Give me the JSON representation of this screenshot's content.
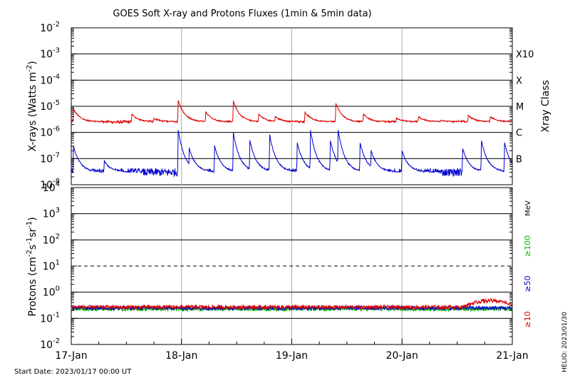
{
  "chart_data": {
    "title": "GOES Soft X-ray and Protons Fluxes   (1min & 5min data)",
    "footer": "Start Date: 2023/01/17 00:00 UT",
    "credit": "HELIO: 2023/01/30",
    "x": {
      "type": "date",
      "range": [
        "2023-01-17",
        "2023-01-21"
      ],
      "tick_labels": [
        "17-Jan",
        "18-Jan",
        "19-Jan",
        "20-Jan",
        "21-Jan"
      ],
      "ticks_days": [
        0,
        1,
        2,
        3,
        4
      ]
    },
    "panels": [
      {
        "type": "line",
        "name": "xray",
        "ylabel": "X-rays (Watts m",
        "ylabel_sup": "-2",
        "ylabel_end": ")",
        "yscale": "log",
        "ylim": [
          1e-08,
          0.01
        ],
        "y_tick_labels": [
          {
            "base": "10",
            "exp": "-2",
            "value": 0.01
          },
          {
            "base": "10",
            "exp": "-3",
            "value": 0.001
          },
          {
            "base": "10",
            "exp": "-4",
            "value": 0.0001
          },
          {
            "base": "10",
            "exp": "-5",
            "value": 1e-05
          },
          {
            "base": "10",
            "exp": "-6",
            "value": 1e-06
          },
          {
            "base": "10",
            "exp": "-7",
            "value": 1e-07
          },
          {
            "base": "10",
            "exp": "-8",
            "value": 1e-08
          }
        ],
        "gridlines_solid": [
          0.001,
          0.0001,
          1e-05,
          1e-06,
          1e-07
        ],
        "right_title": "Xray Class",
        "classes": [
          {
            "label": "X10",
            "value": 0.001
          },
          {
            "label": "X",
            "value": 0.0001
          },
          {
            "label": "M",
            "value": 1e-05
          },
          {
            "label": "C",
            "value": 1e-06
          },
          {
            "label": "B",
            "value": 1e-07
          }
        ],
        "series": [
          {
            "color": "#dd0000",
            "base": 2.5e-06,
            "peaks": [
              [
                0.02,
                8e-06
              ],
              [
                0.55,
                5e-06
              ],
              [
                0.75,
                3.5e-06
              ],
              [
                0.97,
                1.7e-05
              ],
              [
                1.22,
                6e-06
              ],
              [
                1.47,
                1.6e-05
              ],
              [
                1.7,
                5e-06
              ],
              [
                1.85,
                4e-06
              ],
              [
                2.12,
                6e-06
              ],
              [
                2.4,
                1.3e-05
              ],
              [
                2.65,
                5e-06
              ],
              [
                2.95,
                3.5e-06
              ],
              [
                3.15,
                4e-06
              ],
              [
                3.35,
                3e-06
              ],
              [
                3.6,
                4.5e-06
              ],
              [
                3.8,
                4e-06
              ]
            ]
          },
          {
            "color": "#0000cc",
            "base": 3e-08,
            "peaks": [
              [
                0.02,
                3e-07
              ],
              [
                0.3,
                8e-08
              ],
              [
                0.97,
                1.3e-06
              ],
              [
                1.07,
                2.5e-07
              ],
              [
                1.3,
                3e-07
              ],
              [
                1.47,
                1e-06
              ],
              [
                1.62,
                5e-07
              ],
              [
                1.8,
                8e-07
              ],
              [
                2.05,
                4e-07
              ],
              [
                2.17,
                1.2e-06
              ],
              [
                2.35,
                5e-07
              ],
              [
                2.42,
                1.3e-06
              ],
              [
                2.62,
                4e-07
              ],
              [
                2.72,
                2e-07
              ],
              [
                3.0,
                2e-07
              ],
              [
                3.55,
                2.5e-07
              ],
              [
                3.72,
                5e-07
              ],
              [
                3.93,
                4e-07
              ]
            ]
          }
        ]
      },
      {
        "type": "line",
        "name": "protons",
        "ylabel": "Protons (cm",
        "ylabel_parts": [
          "-2",
          "s",
          "-1",
          "sr",
          "-1"
        ],
        "yscale": "log",
        "ylim": [
          0.01,
          10000.0
        ],
        "y_tick_labels": [
          {
            "base": "10",
            "exp": "4",
            "value": 10000.0
          },
          {
            "base": "10",
            "exp": "3",
            "value": 1000.0
          },
          {
            "base": "10",
            "exp": "2",
            "value": 100.0
          },
          {
            "base": "10",
            "exp": "1",
            "value": 10.0
          },
          {
            "base": "10",
            "exp": "0",
            "value": 1.0
          },
          {
            "base": "10",
            "exp": "-1",
            "value": 0.1
          },
          {
            "base": "10",
            "exp": "-2",
            "value": 0.01
          }
        ],
        "gridlines_solid": [
          1000.0,
          100.0,
          1.0,
          0.1
        ],
        "gridline_dashed": 10.0,
        "unit_label": "MeV",
        "energy_labels": [
          {
            "label": "≥100",
            "color": "#00bb00"
          },
          {
            "label": "≥50",
            "color": "#0000cc"
          },
          {
            "label": "≥10",
            "color": "#dd0000"
          }
        ],
        "series": [
          {
            "color": "#dd0000",
            "base": 0.27,
            "bump": [
              3.55,
              4.0,
              0.5
            ]
          },
          {
            "color": "#0000cc",
            "base": 0.25
          },
          {
            "color": "#00bb00",
            "base": 0.23
          }
        ]
      }
    ]
  }
}
